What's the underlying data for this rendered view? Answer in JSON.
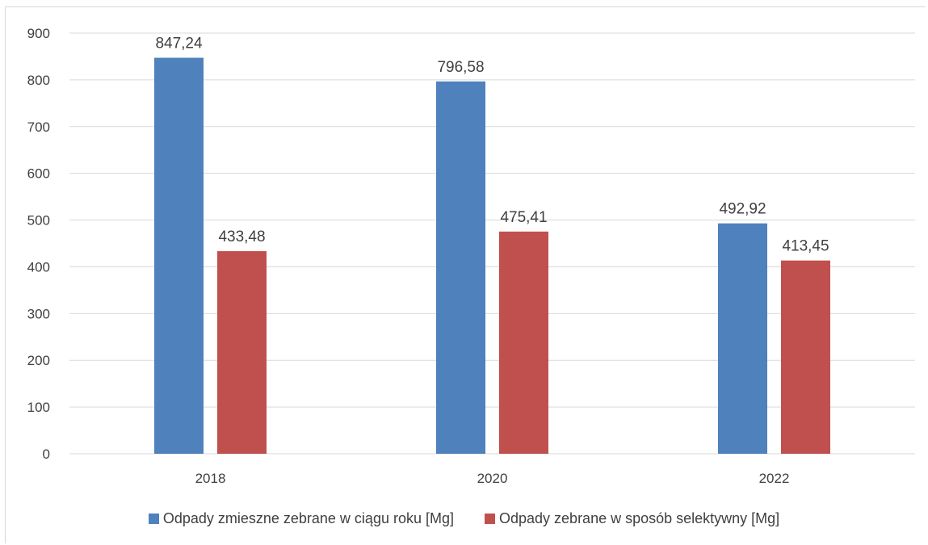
{
  "chart_data": {
    "type": "bar",
    "categories": [
      "2018",
      "2020",
      "2022"
    ],
    "series": [
      {
        "name": "Odpady zmieszne zebrane w ciągu roku [Mg]",
        "values": [
          847.24,
          796.58,
          492.92
        ],
        "labels": [
          "847,24",
          "796,58",
          "492,92"
        ],
        "color": "#4f81bd"
      },
      {
        "name": "Odpady zebrane w sposób selektywny [Mg]",
        "values": [
          433.48,
          475.41,
          413.45
        ],
        "labels": [
          "433,48",
          "475,41",
          "413,45"
        ],
        "color": "#c0504d"
      }
    ],
    "ylim": [
      0,
      900
    ],
    "yticks": [
      "0",
      "100",
      "200",
      "300",
      "400",
      "500",
      "600",
      "700",
      "800",
      "900"
    ],
    "grid": true,
    "legend_position": "bottom"
  }
}
